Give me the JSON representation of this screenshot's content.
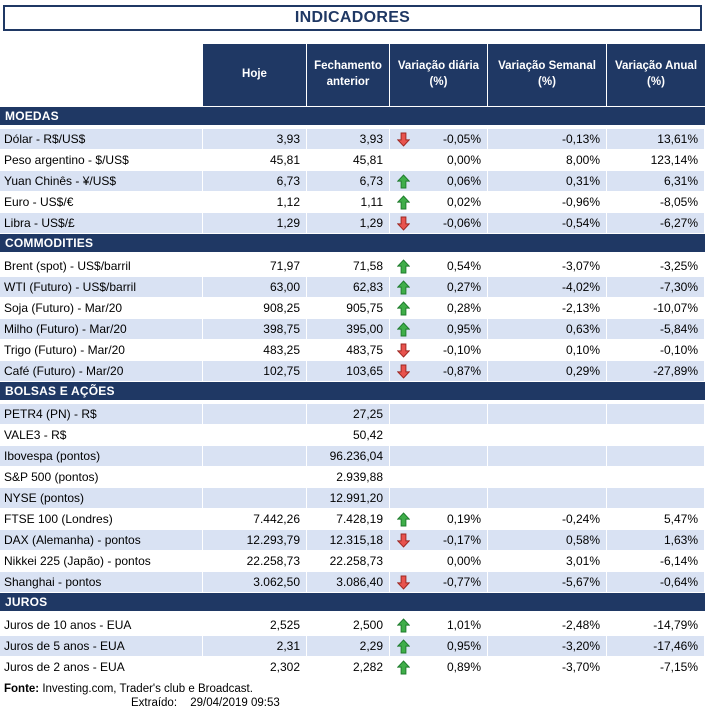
{
  "chart_data": {
    "type": "table",
    "title": "INDICADORES",
    "columns": [
      "Hoje",
      "Fechamento anterior",
      "Variação diária (%)",
      "Variação Semanal (%)",
      "Variação Anual (%)"
    ],
    "sections": [
      {
        "name": "MOEDAS",
        "rows": [
          {
            "label": "Dólar - R$/US$",
            "hoje": "3,93",
            "fechamento": "3,93",
            "arrow": "down",
            "diaria": "-0,05%",
            "semanal": "-0,13%",
            "anual": "13,61%",
            "shaded": true
          },
          {
            "label": "Peso argentino - $/US$",
            "hoje": "45,81",
            "fechamento": "45,81",
            "arrow": "",
            "diaria": "0,00%",
            "semanal": "8,00%",
            "anual": "123,14%",
            "shaded": false
          },
          {
            "label": "Yuan Chinês - ¥/US$",
            "hoje": "6,73",
            "fechamento": "6,73",
            "arrow": "up",
            "diaria": "0,06%",
            "semanal": "0,31%",
            "anual": "6,31%",
            "shaded": true
          },
          {
            "label": "Euro - US$/€",
            "hoje": "1,12",
            "fechamento": "1,11",
            "arrow": "up",
            "diaria": "0,02%",
            "semanal": "-0,96%",
            "anual": "-8,05%",
            "shaded": false
          },
          {
            "label": "Libra - US$/£",
            "hoje": "1,29",
            "fechamento": "1,29",
            "arrow": "down",
            "diaria": "-0,06%",
            "semanal": "-0,54%",
            "anual": "-6,27%",
            "shaded": true
          }
        ]
      },
      {
        "name": "COMMODITIES",
        "rows": [
          {
            "label": "Brent (spot) - US$/barril",
            "hoje": "71,97",
            "fechamento": "71,58",
            "arrow": "up",
            "diaria": "0,54%",
            "semanal": "-3,07%",
            "anual": "-3,25%",
            "shaded": false
          },
          {
            "label": "WTI (Futuro) - US$/barril",
            "hoje": "63,00",
            "fechamento": "62,83",
            "arrow": "up",
            "diaria": "0,27%",
            "semanal": "-4,02%",
            "anual": "-7,30%",
            "shaded": true
          },
          {
            "label": "Soja (Futuro) - Mar/20",
            "hoje": "908,25",
            "fechamento": "905,75",
            "arrow": "up",
            "diaria": "0,28%",
            "semanal": "-2,13%",
            "anual": "-10,07%",
            "shaded": false
          },
          {
            "label": "Milho (Futuro) - Mar/20",
            "hoje": "398,75",
            "fechamento": "395,00",
            "arrow": "up",
            "diaria": "0,95%",
            "semanal": "0,63%",
            "anual": "-5,84%",
            "shaded": true
          },
          {
            "label": "Trigo (Futuro) - Mar/20",
            "hoje": "483,25",
            "fechamento": "483,75",
            "arrow": "down",
            "diaria": "-0,10%",
            "semanal": "0,10%",
            "anual": "-0,10%",
            "shaded": false
          },
          {
            "label": "Café (Futuro) - Mar/20",
            "hoje": "102,75",
            "fechamento": "103,65",
            "arrow": "down",
            "diaria": "-0,87%",
            "semanal": "0,29%",
            "anual": "-27,89%",
            "shaded": true
          }
        ]
      },
      {
        "name": "BOLSAS E AÇÕES",
        "rows": [
          {
            "label": "PETR4 (PN) - R$",
            "hoje": "",
            "fechamento": "27,25",
            "arrow": "",
            "diaria": "",
            "semanal": "",
            "anual": "",
            "shaded": true
          },
          {
            "label": "VALE3 - R$",
            "hoje": "",
            "fechamento": "50,42",
            "arrow": "",
            "diaria": "",
            "semanal": "",
            "anual": "",
            "shaded": false
          },
          {
            "label": "Ibovespa (pontos)",
            "hoje": "",
            "fechamento": "96.236,04",
            "arrow": "",
            "diaria": "",
            "semanal": "",
            "anual": "",
            "shaded": true
          },
          {
            "label": "S&P 500 (pontos)",
            "hoje": "",
            "fechamento": "2.939,88",
            "arrow": "",
            "diaria": "",
            "semanal": "",
            "anual": "",
            "shaded": false
          },
          {
            "label": "NYSE (pontos)",
            "hoje": "",
            "fechamento": "12.991,20",
            "arrow": "",
            "diaria": "",
            "semanal": "",
            "anual": "",
            "shaded": true
          },
          {
            "label": "FTSE 100 (Londres)",
            "hoje": "7.442,26",
            "fechamento": "7.428,19",
            "arrow": "up",
            "diaria": "0,19%",
            "semanal": "-0,24%",
            "anual": "5,47%",
            "shaded": false
          },
          {
            "label": "DAX (Alemanha) - pontos",
            "hoje": "12.293,79",
            "fechamento": "12.315,18",
            "arrow": "down",
            "diaria": "-0,17%",
            "semanal": "0,58%",
            "anual": "1,63%",
            "shaded": true
          },
          {
            "label": "Nikkei 225 (Japão) - pontos",
            "hoje": "22.258,73",
            "fechamento": "22.258,73",
            "arrow": "",
            "diaria": "0,00%",
            "semanal": "3,01%",
            "anual": "-6,14%",
            "shaded": false
          },
          {
            "label": "Shanghai - pontos",
            "hoje": "3.062,50",
            "fechamento": "3.086,40",
            "arrow": "down",
            "diaria": "-0,77%",
            "semanal": "-5,67%",
            "anual": "-0,64%",
            "shaded": true
          }
        ]
      },
      {
        "name": "JUROS",
        "rows": [
          {
            "label": "Juros de 10 anos - EUA",
            "hoje": "2,525",
            "fechamento": "2,500",
            "arrow": "up",
            "diaria": "1,01%",
            "semanal": "-2,48%",
            "anual": "-14,79%",
            "shaded": false
          },
          {
            "label": "Juros de 5 anos - EUA",
            "hoje": "2,31",
            "fechamento": "2,29",
            "arrow": "up",
            "diaria": "0,95%",
            "semanal": "-3,20%",
            "anual": "-17,46%",
            "shaded": true
          },
          {
            "label": "Juros de 2 anos - EUA",
            "hoje": "2,302",
            "fechamento": "2,282",
            "arrow": "up",
            "diaria": "0,89%",
            "semanal": "-3,70%",
            "anual": "-7,15%",
            "shaded": false
          }
        ]
      }
    ]
  },
  "footer": {
    "fonte_label": "Fonte:",
    "fonte_text": "Investing.com, Trader's club e Broadcast.",
    "extraido_label": "Extraído:",
    "extraido_value": "29/04/2019 09:53"
  },
  "colors": {
    "navy": "#1F3864",
    "band": "#D9E2F3",
    "arrow_up": "#3FAE49",
    "arrow_up_border": "#1D7A2C",
    "arrow_down": "#E8534E",
    "arrow_down_border": "#9C2620"
  },
  "icons": {
    "up": "arrow-up-icon",
    "down": "arrow-down-icon"
  }
}
